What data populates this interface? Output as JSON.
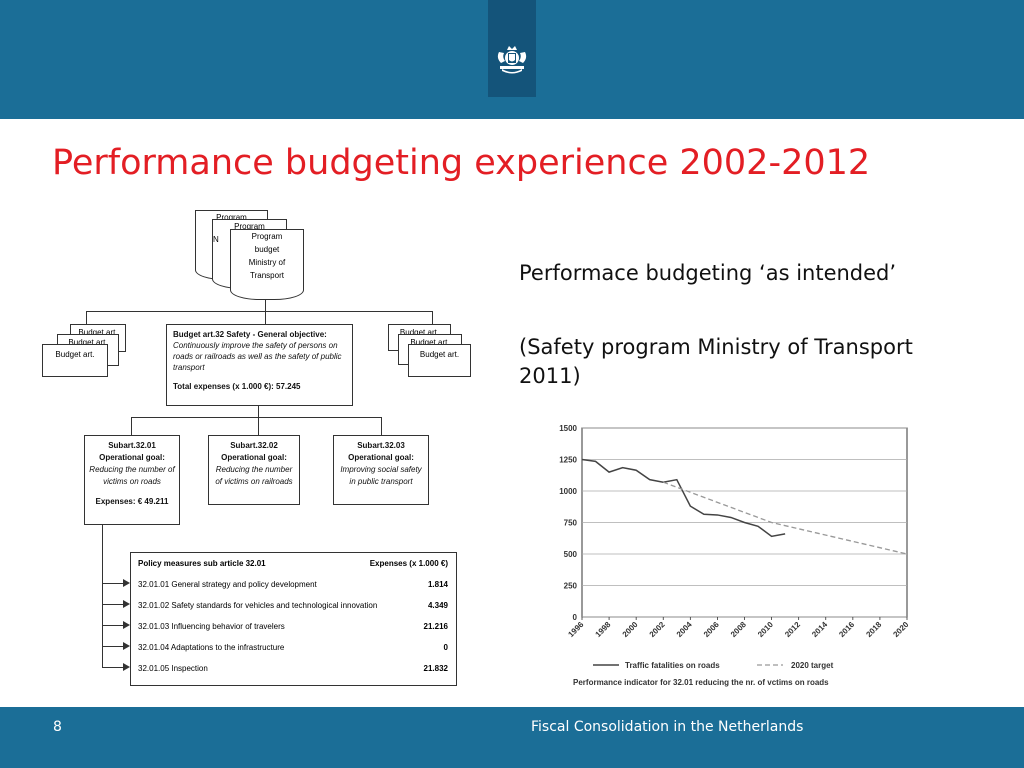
{
  "slide": {
    "title": "Performance budgeting experience 2002-2012",
    "right_text_1": "Performace budgeting ‘as intended’",
    "right_text_2": "(Safety program Ministry of Transport 2011)",
    "page_number": "8",
    "footer": "Fiscal Consolidation in the Netherlands",
    "logo_icon": "royal-coat-of-arms-icon"
  },
  "diagram": {
    "program_doc_back_1": "Program",
    "program_doc_back_2": "Program",
    "program_doc_back_2_line2": "N",
    "program_doc_front": [
      "Program",
      "budget",
      "Ministry of",
      "Transport"
    ],
    "budget_art_back_1": "Budget art.",
    "budget_art_back_2": "Budget art.",
    "budget_art_front": "Budget art.",
    "main_article": {
      "heading": "Budget art.32  Safety - General objective:",
      "body": "Continuously improve the safety of persons on roads or railroads as well as the safety of public transport",
      "total": "Total expenses (x 1.000 €):   57.245"
    },
    "subarticles": [
      {
        "id": "Subart.32.01",
        "goal_label": "Operational goal:",
        "goal": "Reducing the number of victims on roads",
        "expenses": "Expenses: € 49.211"
      },
      {
        "id": "Subart.32.02",
        "goal_label": "Operational goal:",
        "goal": "Reducing the number of victims on railroads"
      },
      {
        "id": "Subart.32.03",
        "goal_label": "Operational goal:",
        "goal": "Improving social safety in public transport"
      }
    ],
    "policy_table": {
      "header_left": "Policy measures sub article 32.01",
      "header_right": "Expenses (x 1.000 €)",
      "rows": [
        {
          "label": "32.01.01 General strategy and policy development",
          "value": "1.814"
        },
        {
          "label": "32.01.02 Safety standards for vehicles and technological innovation",
          "value": "4.349"
        },
        {
          "label": "32.01.03 Influencing behavior of travelers",
          "value": "21.216"
        },
        {
          "label": "32.01.04 Adaptations to the infrastructure",
          "value": "0"
        },
        {
          "label": "32.01.05 Inspection",
          "value": "21.832"
        }
      ]
    }
  },
  "chart_data": {
    "type": "line",
    "x_ticks": [
      "1996",
      "1998",
      "2000",
      "2002",
      "2004",
      "2006",
      "2008",
      "2010",
      "2012",
      "2014",
      "2016",
      "2018",
      "2020"
    ],
    "y_ticks": [
      "0",
      "250",
      "500",
      "750",
      "1000",
      "1250",
      "1500"
    ],
    "ylim": [
      0,
      1500
    ],
    "xlim": [
      1996,
      2020
    ],
    "grid": true,
    "series": [
      {
        "name": "Traffic fatalities on roads",
        "style": "solid",
        "x": [
          1996,
          1997,
          1998,
          1999,
          2000,
          2001,
          2002,
          2003,
          2004,
          2005,
          2006,
          2007,
          2008,
          2009,
          2010,
          2011
        ],
        "y": [
          1250,
          1235,
          1150,
          1185,
          1165,
          1090,
          1070,
          1090,
          880,
          815,
          810,
          790,
          750,
          720,
          640,
          660
        ]
      },
      {
        "name": "2020 target",
        "style": "dashed",
        "x": [
          2002,
          2010,
          2020
        ],
        "y": [
          1070,
          750,
          500
        ]
      }
    ],
    "caption": "Performance indicator for 32.01 reducing the nr. of vctims on roads",
    "line_color": "#444444",
    "target_color": "#999999"
  }
}
